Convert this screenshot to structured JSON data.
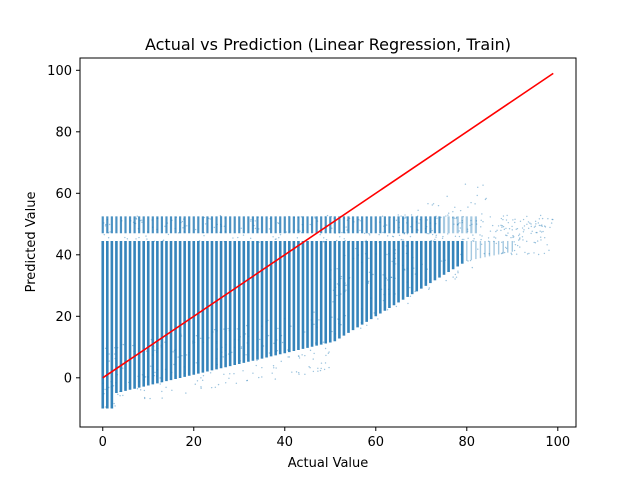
{
  "chart_data": {
    "type": "scatter",
    "title": "Actual vs Prediction (Linear Regression, Train)",
    "xlabel": "Actual Value",
    "ylabel": "Predicted Value",
    "xlim": [
      -5,
      104
    ],
    "ylim": [
      -16,
      104
    ],
    "xticks": [
      0,
      20,
      40,
      60,
      80,
      100
    ],
    "yticks": [
      0,
      20,
      40,
      60,
      80,
      100
    ],
    "grid": false,
    "legend": "none",
    "series": [
      {
        "kind": "scatter",
        "color": "#1f77b4",
        "x_range": [
          0,
          99
        ],
        "y_range": [
          -11,
          53
        ],
        "distribution": "dense vertical columns at integer actual values; predictions span roughly -10 to 52 for low actuals, lower bound rising with actual value"
      },
      {
        "kind": "line",
        "color": "#ff0000",
        "x": [
          0,
          99
        ],
        "y": [
          0,
          99
        ]
      }
    ]
  }
}
